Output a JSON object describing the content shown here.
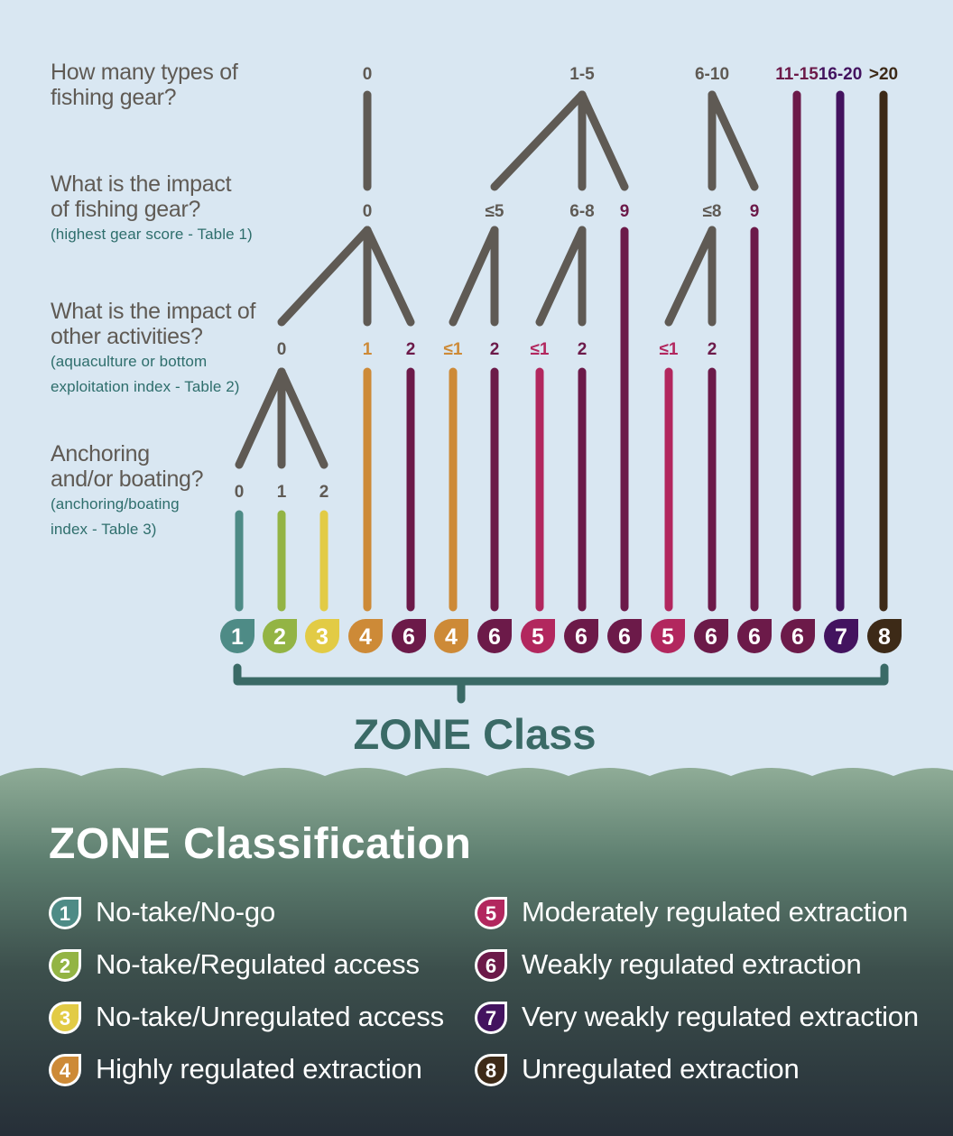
{
  "questions": [
    {
      "main": "How many types of fishing gear?",
      "sub": ""
    },
    {
      "main": "What is the impact of fishing gear?",
      "sub": "(highest gear score - Table 1)"
    },
    {
      "main": "What is the impact of other activities?",
      "sub": "(aquaculture or bottom exploitation index - Table 2)"
    },
    {
      "main": "Anchoring and/or boating?",
      "sub": "(anchoring/boating index - Table 3)"
    }
  ],
  "question_lines": [
    [
      "How many types of",
      "fishing gear?"
    ],
    [
      "What is the impact",
      "of fishing gear?"
    ],
    [
      "(highest gear score - Table 1)"
    ],
    [
      "What is the impact of",
      "other activities?"
    ],
    [
      "(aquaculture or bottom",
      "exploitation index - Table 2)"
    ],
    [
      "Anchoring",
      "and/or boating?"
    ],
    [
      "(anchoring/boating",
      "index - Table 3)"
    ]
  ],
  "colors": {
    "1": "#4e8b86",
    "2": "#93b444",
    "3": "#e2cb45",
    "4": "#cd8a37",
    "5": "#b2275e",
    "6": "#6c1a49",
    "7": "#43135f",
    "8": "#3d2a17",
    "gray": "#5f5a54",
    "teal_dark": "#3a6a66",
    "background": "#d9e7f2"
  },
  "gear_types": [
    "0",
    "1-5",
    "6-10",
    "11-15",
    "16-20",
    ">20"
  ],
  "gear_impact": [
    "0",
    "≤5",
    "6-8",
    "9",
    "≤8",
    "9"
  ],
  "other_impact": [
    "0",
    "1",
    "2",
    "≤1",
    "2",
    "≤1",
    "2",
    "≤1",
    "2"
  ],
  "anchoring": [
    "0",
    "1",
    "2"
  ],
  "zone_classes": [
    "1",
    "2",
    "3",
    "4",
    "6",
    "4",
    "6",
    "5",
    "6",
    "6",
    "5",
    "6",
    "6",
    "6",
    "7",
    "8"
  ],
  "zone_class_label": "ZONE Class",
  "legend": {
    "title": "ZONE Classification",
    "items": [
      {
        "num": "1",
        "label": "No-take/No-go"
      },
      {
        "num": "2",
        "label": "No-take/Regulated access"
      },
      {
        "num": "3",
        "label": "No-take/Unregulated access"
      },
      {
        "num": "4",
        "label": "Highly regulated extraction"
      },
      {
        "num": "5",
        "label": "Moderately regulated extraction"
      },
      {
        "num": "6",
        "label": "Weakly regulated extraction"
      },
      {
        "num": "7",
        "label": "Very weakly regulated extraction"
      },
      {
        "num": "8",
        "label": "Unregulated extraction"
      }
    ]
  }
}
